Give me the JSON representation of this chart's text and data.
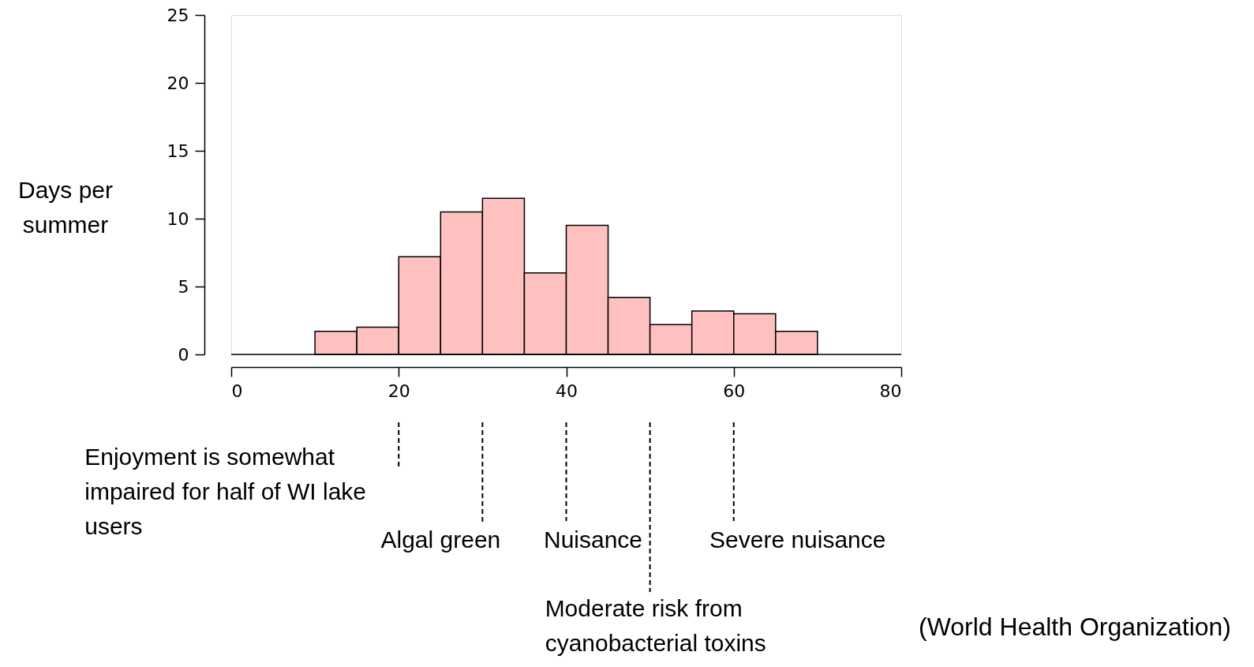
{
  "chart_data": {
    "type": "histogram",
    "bins": [
      10,
      15,
      20,
      25,
      30,
      35,
      40,
      45,
      50,
      55,
      60,
      65,
      70
    ],
    "values": [
      1.7,
      2.0,
      7.2,
      10.5,
      11.5,
      6.0,
      9.5,
      4.2,
      2.2,
      3.2,
      3.0,
      1.7
    ],
    "color": "#ffc0c0",
    "ylabel": "Days per\nsummer",
    "xlim": [
      0,
      80
    ],
    "xticks": [
      0,
      20,
      40,
      60,
      80
    ],
    "ylim": [
      0,
      25
    ],
    "yticks": [
      0,
      5,
      10,
      15,
      20,
      25
    ],
    "grid": false,
    "ref_lines": [
      {
        "axis": "y",
        "value": 0,
        "line_style": "solid"
      },
      {
        "axis": "x",
        "value": 20,
        "label": "Enjoyment is somewhat\nimpaired for half of WI lake\nusers",
        "line_style": "dashed"
      },
      {
        "axis": "x",
        "value": 30,
        "label": "Algal green",
        "line_style": "dashed"
      },
      {
        "axis": "x",
        "value": 40,
        "label": "Nuisance",
        "line_style": "dashed"
      },
      {
        "axis": "x",
        "value": 50,
        "label": "Moderate risk from\ncyanobacterial toxins",
        "line_style": "dashed"
      },
      {
        "axis": "x",
        "value": 60,
        "label": "Severe nuisance",
        "line_style": "dashed"
      }
    ],
    "annotations": [
      "(World Health Organization)"
    ]
  }
}
